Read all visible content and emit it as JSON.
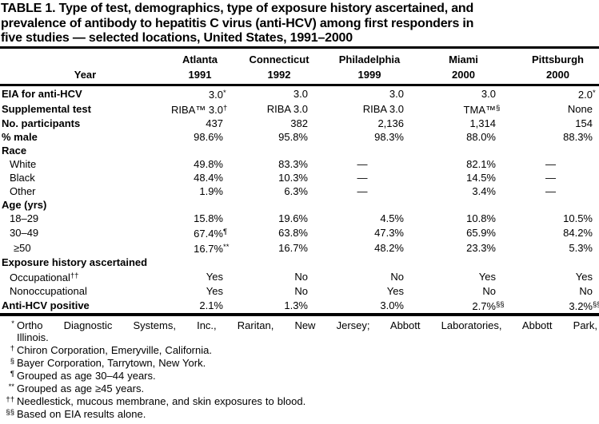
{
  "title_lines": [
    "TABLE 1. Type of test, demographics, type of exposure history ascertained, and",
    "prevalence of antibody to hepatitis C virus (anti-HCV) among first responders in",
    "five studies — selected locations, United States, 1991–2000"
  ],
  "table": {
    "col_headers": [
      "Atlanta",
      "Connecticut",
      "Philadelphia",
      "Miami",
      "Pittsburgh"
    ],
    "year_row": {
      "label": "Year",
      "values": [
        "1991",
        "1992",
        "1999",
        "2000",
        "2000"
      ]
    },
    "rows": [
      {
        "label": "EIA for anti-HCV",
        "bold": true,
        "indent": 0,
        "values": [
          {
            "t": "3.0",
            "s": "*"
          },
          {
            "t": "3.0"
          },
          {
            "t": "3.0"
          },
          {
            "t": "3.0"
          },
          {
            "t": "2.0",
            "s": "*"
          }
        ]
      },
      {
        "label": "Supplemental test",
        "bold": true,
        "indent": 0,
        "values": [
          {
            "t": "RIBA™ 3.0",
            "s": "†"
          },
          {
            "t": "RIBA 3.0"
          },
          {
            "t": "RIBA 3.0"
          },
          {
            "t": "TMA™",
            "s": "§"
          },
          {
            "t": "None"
          }
        ]
      },
      {
        "label": "No. participants",
        "bold": true,
        "indent": 0,
        "values": [
          {
            "t": "437"
          },
          {
            "t": "382"
          },
          {
            "t": "2,136"
          },
          {
            "t": "1,314"
          },
          {
            "t": "154"
          }
        ]
      },
      {
        "label": "% male",
        "bold": true,
        "indent": 0,
        "values": [
          {
            "t": "98.6%"
          },
          {
            "t": "95.8%"
          },
          {
            "t": "98.3%"
          },
          {
            "t": "88.0%"
          },
          {
            "t": "88.3%"
          }
        ]
      },
      {
        "label": "Race",
        "bold": true,
        "indent": 0,
        "values": []
      },
      {
        "label": "White",
        "bold": false,
        "indent": 1,
        "values": [
          {
            "t": "49.8%"
          },
          {
            "t": "83.3%"
          },
          {
            "t": "—"
          },
          {
            "t": "82.1%"
          },
          {
            "t": "—"
          }
        ]
      },
      {
        "label": "Black",
        "bold": false,
        "indent": 1,
        "values": [
          {
            "t": "48.4%"
          },
          {
            "t": "10.3%"
          },
          {
            "t": "—"
          },
          {
            "t": "14.5%"
          },
          {
            "t": "—"
          }
        ]
      },
      {
        "label": "Other",
        "bold": false,
        "indent": 1,
        "values": [
          {
            "t": "1.9%"
          },
          {
            "t": "6.3%"
          },
          {
            "t": "—"
          },
          {
            "t": "3.4%"
          },
          {
            "t": "—"
          }
        ]
      },
      {
        "label": "Age (yrs)",
        "bold": true,
        "indent": 0,
        "values": []
      },
      {
        "label": "18–29",
        "bold": false,
        "indent": 1,
        "values": [
          {
            "t": "15.8%"
          },
          {
            "t": "19.6%"
          },
          {
            "t": "4.5%"
          },
          {
            "t": "10.8%"
          },
          {
            "t": "10.5%"
          }
        ]
      },
      {
        "label": "30–49",
        "bold": false,
        "indent": 1,
        "values": [
          {
            "t": "67.4%",
            "s": "¶"
          },
          {
            "t": "63.8%"
          },
          {
            "t": "47.3%"
          },
          {
            "t": "65.9%"
          },
          {
            "t": "84.2%"
          }
        ]
      },
      {
        "label": "≥50",
        "bold": false,
        "indent": 2,
        "values": [
          {
            "t": "16.7%",
            "s": "**"
          },
          {
            "t": "16.7%"
          },
          {
            "t": "48.2%"
          },
          {
            "t": "23.3%"
          },
          {
            "t": "5.3%"
          }
        ]
      },
      {
        "label": "Exposure history ascertained",
        "bold": true,
        "indent": 0,
        "values": []
      },
      {
        "label": "Occupational",
        "label_sup": "††",
        "bold": false,
        "indent": 1,
        "values": [
          {
            "t": "Yes"
          },
          {
            "t": "No"
          },
          {
            "t": "No"
          },
          {
            "t": "Yes"
          },
          {
            "t": "Yes"
          }
        ]
      },
      {
        "label": "Nonoccupational",
        "bold": false,
        "indent": 1,
        "values": [
          {
            "t": "Yes"
          },
          {
            "t": "No"
          },
          {
            "t": "Yes"
          },
          {
            "t": "No"
          },
          {
            "t": "No"
          }
        ]
      },
      {
        "label": "Anti-HCV positive",
        "bold": true,
        "indent": 0,
        "values": [
          {
            "t": "2.1%"
          },
          {
            "t": "1.3%"
          },
          {
            "t": "3.0%"
          },
          {
            "t": "2.7%",
            "s": "§§"
          },
          {
            "t": "3.2%",
            "s": "§§"
          }
        ]
      }
    ]
  },
  "footnotes": [
    {
      "marker": "*",
      "lines": [
        "Ortho Diagnostic Systems, Inc., Raritan, New Jersey; Abbott Laboratories, Abbott Park,",
        "Illinois."
      ]
    },
    {
      "marker": "†",
      "lines": [
        "Chiron Corporation, Emeryville, California."
      ]
    },
    {
      "marker": "§",
      "lines": [
        "Bayer Corporation, Tarrytown, New York."
      ]
    },
    {
      "marker": "¶",
      "lines": [
        "Grouped as age 30–44 years."
      ]
    },
    {
      "marker": "**",
      "lines": [
        "Grouped as age ≥45 years."
      ]
    },
    {
      "marker": "††",
      "lines": [
        "Needlestick, mucous membrane, and skin exposures to blood."
      ]
    },
    {
      "marker": "§§",
      "lines": [
        "Based on EIA results alone."
      ]
    }
  ],
  "colors": {
    "text": "#000000",
    "background": "#ffffff",
    "rule": "#000000"
  }
}
